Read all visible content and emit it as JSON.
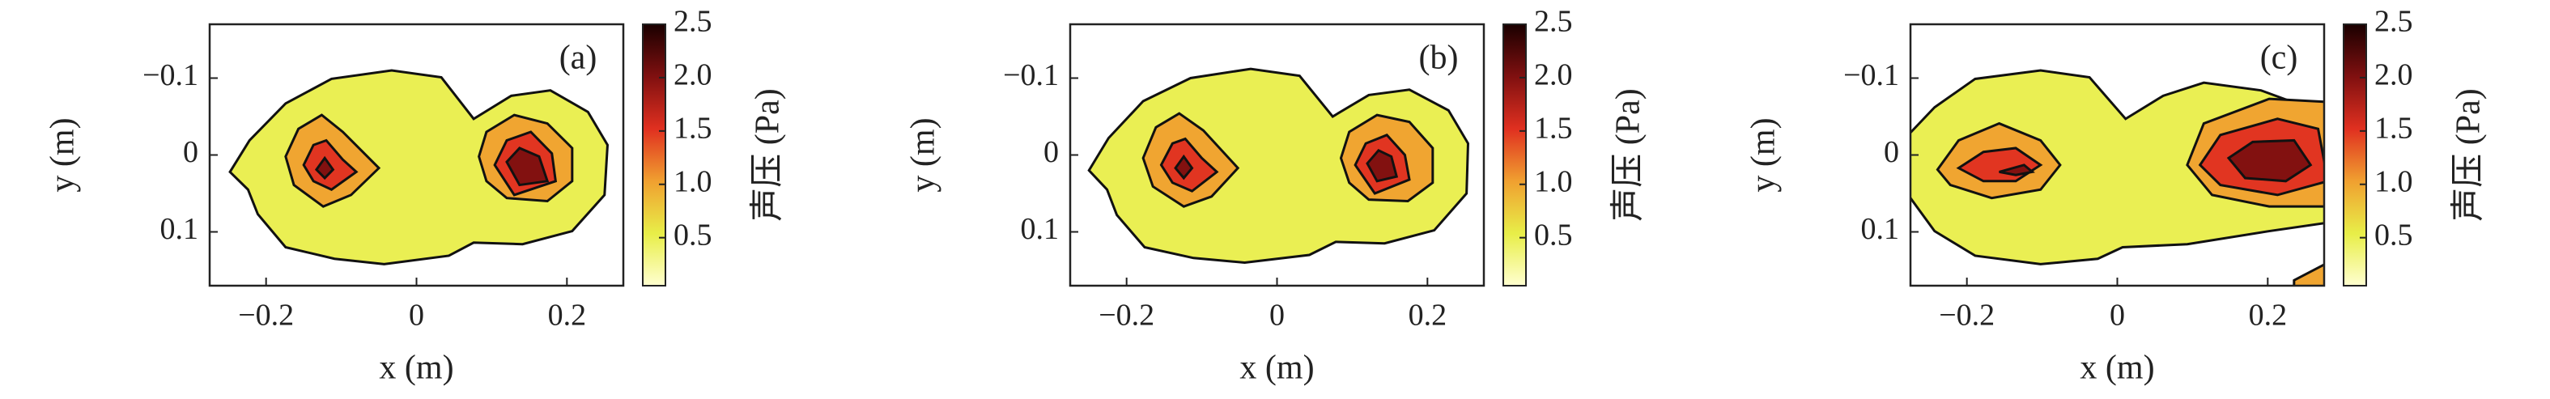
{
  "chart_data": [
    {
      "type": "contour",
      "label": "(a)",
      "xlabel": "x (m)",
      "ylabel": "y (m)",
      "xlim": [
        -0.275,
        0.275
      ],
      "ylim": [
        -0.17,
        0.17
      ],
      "y_inverted": true,
      "xticks": [
        {
          "value": -0.2,
          "label": "−0.2"
        },
        0,
        0.2
      ],
      "yticks": [
        {
          "value": -0.1,
          "label": "−0.1"
        },
        0,
        0.1
      ],
      "colorbar": {
        "label": "声压 (Pa)",
        "lim": [
          0.05,
          2.5
        ],
        "colormap": [
          "#ffffd0",
          "#e8ee48",
          "#f0a030",
          "#e03020",
          "#801010",
          "#1a0000"
        ],
        "ticks": [
          0.5,
          {
            "value": 1,
            "label": "1.0"
          },
          1.5,
          {
            "value": 2,
            "label": "2.0"
          },
          2.5
        ]
      },
      "regions": [
        {
          "level": 0.5,
          "x": [
            -0.248,
            -0.222,
            -0.174,
            -0.113,
            -0.033,
            0.033,
            0.076,
            0.126,
            0.178,
            0.228,
            0.254,
            0.25,
            0.207,
            0.141,
            0.076,
            0.043,
            -0.043,
            -0.109,
            -0.174,
            -0.211,
            -0.224
          ],
          "y": [
            0.022,
            -0.019,
            -0.067,
            -0.099,
            -0.11,
            -0.101,
            -0.047,
            -0.077,
            -0.084,
            -0.056,
            -0.013,
            0.052,
            0.099,
            0.116,
            0.114,
            0.131,
            0.142,
            0.135,
            0.12,
            0.077,
            0.045
          ]
        },
        {
          "level": 1.0,
          "x": [
            -0.174,
            -0.157,
            -0.126,
            -0.098,
            -0.05,
            -0.087,
            -0.124,
            -0.163
          ],
          "y": [
            0.002,
            -0.034,
            -0.052,
            -0.03,
            0.017,
            0.052,
            0.067,
            0.039
          ]
        },
        {
          "level": 1.5,
          "x": [
            -0.15,
            -0.137,
            -0.12,
            -0.098,
            -0.08,
            -0.113,
            -0.137
          ],
          "y": [
            0.013,
            -0.013,
            -0.019,
            0.006,
            0.022,
            0.045,
            0.034
          ]
        },
        {
          "level": 2.0,
          "x": [
            -0.133,
            -0.122,
            -0.111,
            -0.122
          ],
          "y": [
            0.019,
            0.004,
            0.019,
            0.03
          ]
        },
        {
          "level": 1.0,
          "x": [
            0.083,
            0.093,
            0.13,
            0.174,
            0.207,
            0.207,
            0.174,
            0.12,
            0.093
          ],
          "y": [
            0.002,
            -0.03,
            -0.052,
            -0.041,
            -0.009,
            0.034,
            0.06,
            0.056,
            0.034
          ]
        },
        {
          "level": 1.5,
          "x": [
            0.104,
            0.12,
            0.152,
            0.18,
            0.185,
            0.13
          ],
          "y": [
            0.013,
            -0.019,
            -0.03,
            -0.002,
            0.034,
            0.052
          ]
        },
        {
          "level": 2.0,
          "x": [
            0.12,
            0.137,
            0.163,
            0.174,
            0.137
          ],
          "y": [
            0.009,
            -0.009,
            0.002,
            0.034,
            0.039
          ]
        }
      ]
    },
    {
      "type": "contour",
      "label": "(b)",
      "xlabel": "x (m)",
      "ylabel": "y (m)",
      "xlim": [
        -0.275,
        0.275
      ],
      "ylim": [
        -0.17,
        0.17
      ],
      "y_inverted": true,
      "xticks": [
        {
          "value": -0.2,
          "label": "−0.2"
        },
        0,
        0.2
      ],
      "yticks": [
        {
          "value": -0.1,
          "label": "−0.1"
        },
        0,
        0.1
      ],
      "colorbar": {
        "label": "声压 (Pa)",
        "lim": [
          0.05,
          2.5
        ],
        "colormap": [
          "#ffffd0",
          "#e8ee48",
          "#f0a030",
          "#e03020",
          "#801010",
          "#1a0000"
        ],
        "ticks": [
          0.5,
          {
            "value": 1,
            "label": "1.0"
          },
          1.5,
          {
            "value": 2,
            "label": "2.0"
          },
          2.5
        ]
      },
      "regions": [
        {
          "level": 0.5,
          "x": [
            -0.25,
            -0.224,
            -0.178,
            -0.115,
            -0.035,
            0.03,
            0.074,
            0.122,
            0.176,
            0.228,
            0.254,
            0.252,
            0.209,
            0.143,
            0.078,
            0.043,
            -0.043,
            -0.111,
            -0.176,
            -0.213,
            -0.226
          ],
          "y": [
            0.02,
            -0.022,
            -0.07,
            -0.1,
            -0.112,
            -0.103,
            -0.05,
            -0.078,
            -0.085,
            -0.058,
            -0.015,
            0.05,
            0.098,
            0.115,
            0.113,
            0.13,
            0.14,
            0.134,
            0.12,
            0.078,
            0.045
          ]
        },
        {
          "level": 1.0,
          "x": [
            -0.178,
            -0.161,
            -0.13,
            -0.098,
            -0.052,
            -0.087,
            -0.124,
            -0.165
          ],
          "y": [
            0.004,
            -0.036,
            -0.054,
            -0.032,
            0.017,
            0.054,
            0.067,
            0.041
          ]
        },
        {
          "level": 1.5,
          "x": [
            -0.154,
            -0.139,
            -0.122,
            -0.1,
            -0.08,
            -0.113,
            -0.139
          ],
          "y": [
            0.013,
            -0.015,
            -0.021,
            0.004,
            0.022,
            0.047,
            0.036
          ]
        },
        {
          "level": 2.0,
          "x": [
            -0.135,
            -0.124,
            -0.113,
            -0.124
          ],
          "y": [
            0.017,
            0.002,
            0.017,
            0.03
          ]
        },
        {
          "level": 1.0,
          "x": [
            0.085,
            0.096,
            0.133,
            0.176,
            0.207,
            0.207,
            0.174,
            0.122,
            0.096
          ],
          "y": [
            0.004,
            -0.03,
            -0.052,
            -0.043,
            -0.009,
            0.036,
            0.06,
            0.058,
            0.036
          ]
        },
        {
          "level": 1.5,
          "x": [
            0.104,
            0.118,
            0.146,
            0.17,
            0.176,
            0.13
          ],
          "y": [
            0.013,
            -0.015,
            -0.026,
            0.0,
            0.032,
            0.05
          ]
        },
        {
          "level": 2.0,
          "x": [
            0.12,
            0.135,
            0.152,
            0.159,
            0.133
          ],
          "y": [
            0.011,
            -0.006,
            0.002,
            0.028,
            0.034
          ]
        }
      ]
    },
    {
      "type": "contour",
      "label": "(c)",
      "xlabel": "x (m)",
      "ylabel": "y (m)",
      "xlim": [
        -0.275,
        0.275
      ],
      "ylim": [
        -0.17,
        0.17
      ],
      "y_inverted": true,
      "xticks": [
        {
          "value": -0.2,
          "label": "−0.2"
        },
        0,
        0.2
      ],
      "yticks": [
        {
          "value": -0.1,
          "label": "−0.1"
        },
        0,
        0.1
      ],
      "colorbar": {
        "label": "声压 (Pa)",
        "lim": [
          0.05,
          2.5
        ],
        "colormap": [
          "#ffffd0",
          "#e8ee48",
          "#f0a030",
          "#e03020",
          "#801010",
          "#1a0000"
        ],
        "ticks": [
          0.5,
          {
            "value": 1,
            "label": "1.0"
          },
          1.5,
          {
            "value": 2,
            "label": "2.0"
          },
          2.5
        ]
      },
      "regions": [
        {
          "level": 0.5,
          "x": [
            -0.278,
            -0.243,
            -0.189,
            -0.102,
            -0.037,
            0.011,
            0.061,
            0.115,
            0.191,
            0.28,
            0.28,
            0.202,
            0.093,
            0.007,
            -0.026,
            -0.102,
            -0.189,
            -0.243,
            -0.278
          ],
          "y": [
            -0.026,
            -0.062,
            -0.099,
            -0.11,
            -0.101,
            -0.047,
            -0.077,
            -0.094,
            -0.084,
            -0.052,
            0.088,
            0.099,
            0.116,
            0.12,
            0.135,
            0.142,
            0.131,
            0.099,
            0.052
          ]
        },
        {
          "level": 1.0,
          "x": [
            -0.239,
            -0.211,
            -0.157,
            -0.102,
            -0.076,
            -0.102,
            -0.167,
            -0.222
          ],
          "y": [
            0.019,
            -0.019,
            -0.041,
            -0.019,
            0.013,
            0.045,
            0.056,
            0.039
          ]
        },
        {
          "level": 1.5,
          "x": [
            -0.211,
            -0.178,
            -0.135,
            -0.102,
            -0.135,
            -0.178
          ],
          "y": [
            0.017,
            -0.004,
            -0.009,
            0.013,
            0.034,
            0.034
          ]
        },
        {
          "level": 2.0,
          "x": [
            -0.157,
            -0.124,
            -0.113,
            -0.135
          ],
          "y": [
            0.022,
            0.013,
            0.022,
            0.026
          ]
        },
        {
          "level": 1.0,
          "x": [
            0.093,
            0.115,
            0.202,
            0.28,
            0.28,
            0.202,
            0.126
          ],
          "y": [
            0.013,
            -0.041,
            -0.073,
            -0.069,
            0.067,
            0.067,
            0.052
          ]
        },
        {
          "level": 1.5,
          "x": [
            0.11,
            0.137,
            0.213,
            0.267,
            0.28,
            0.213,
            0.137
          ],
          "y": [
            0.013,
            -0.026,
            -0.047,
            -0.034,
            0.034,
            0.052,
            0.039
          ]
        },
        {
          "level": 2.0,
          "x": [
            0.148,
            0.18,
            0.235,
            0.257,
            0.224,
            0.17
          ],
          "y": [
            0.004,
            -0.017,
            -0.019,
            0.013,
            0.034,
            0.03
          ]
        },
        {
          "level": 1.0,
          "x": [
            0.235,
            0.28,
            0.28,
            0.235
          ],
          "y": [
            0.163,
            0.14,
            0.18,
            0.18
          ]
        }
      ]
    }
  ]
}
